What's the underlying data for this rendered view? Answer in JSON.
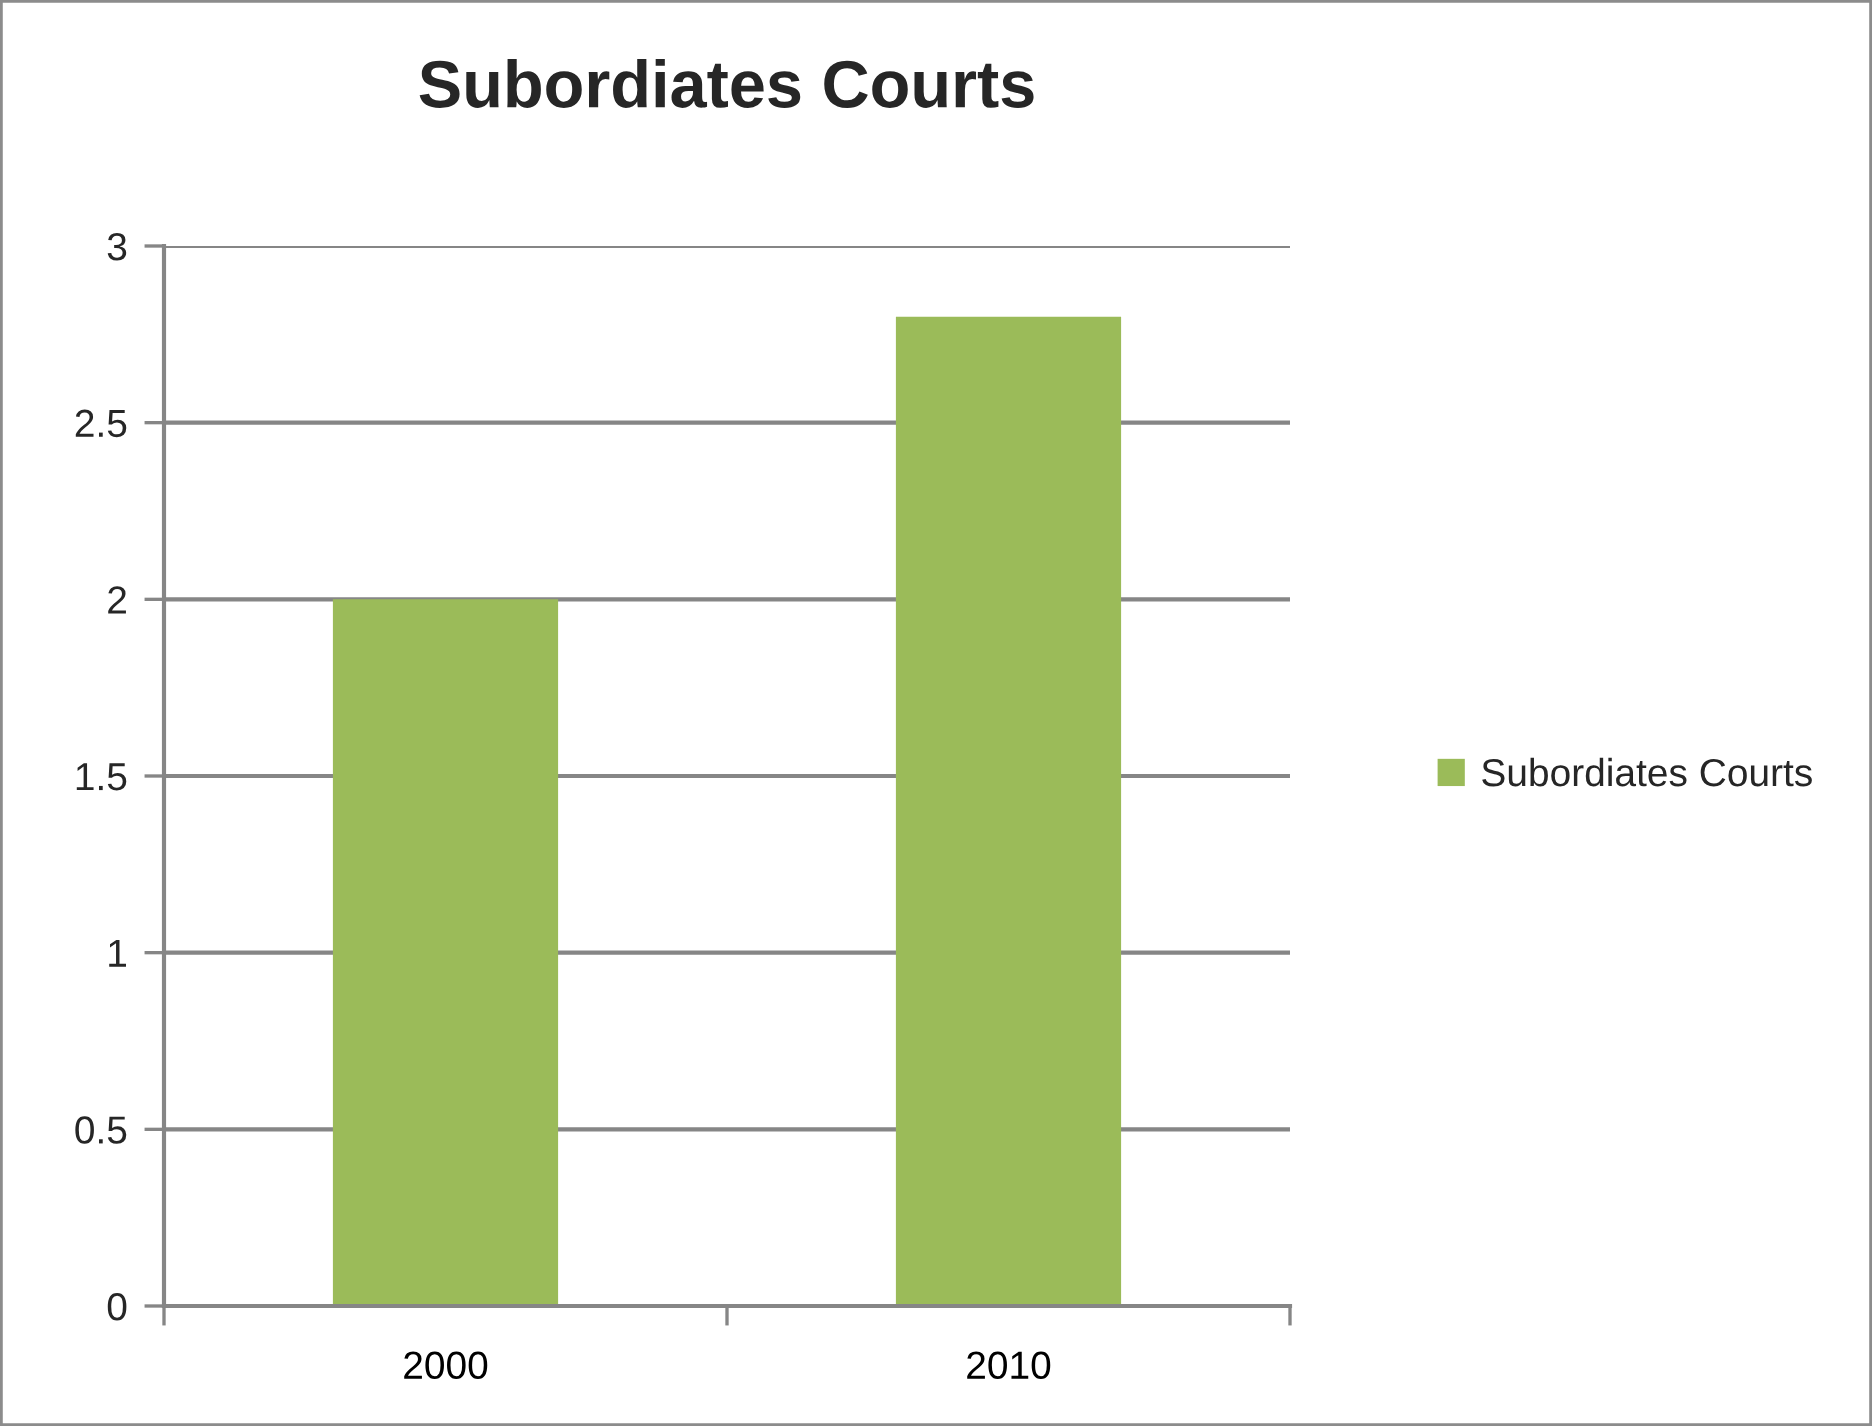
{
  "chart_data": {
    "type": "bar",
    "title": "Subordiates Courts",
    "categories": [
      "2000",
      "2010"
    ],
    "series": [
      {
        "name": "Subordiates Courts",
        "color": "#9bbb59",
        "values": [
          2,
          2.8
        ]
      }
    ],
    "ylim": [
      0,
      3
    ],
    "yticks": [
      0,
      0.5,
      1,
      1.5,
      2,
      2.5,
      3
    ],
    "grid": "y",
    "legend": "right"
  }
}
